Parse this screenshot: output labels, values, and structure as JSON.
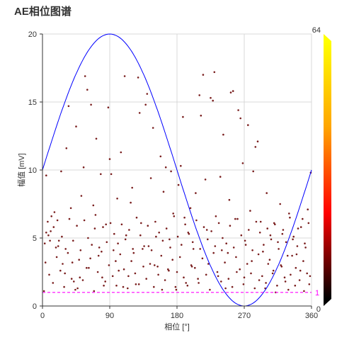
{
  "page": {
    "title": "AE相位图谱"
  },
  "chart_data": {
    "type": "scatter",
    "title": "AE相位图谱",
    "xlabel": "相位 [°]",
    "ylabel": "幅值 [mV]",
    "xlim": [
      0,
      360
    ],
    "ylim": [
      0,
      20
    ],
    "x_ticks": [
      "0",
      "90",
      "180",
      "270",
      "360"
    ],
    "y_ticks": [
      "0",
      "5",
      "10",
      "15",
      "20"
    ],
    "grid": true,
    "reference_sine": {
      "color": "#0000ff",
      "offset": 10,
      "amplitude": 10,
      "peak_phase": 90,
      "x_range": [
        0,
        360
      ]
    },
    "threshold": {
      "value": 1,
      "label": "1",
      "color": "#ff00ff",
      "style": "dashed"
    },
    "colorbar": {
      "max_label": "64",
      "min_label": "0",
      "colors": [
        "#000000",
        "#ff0000",
        "#ffa500",
        "#ffff00"
      ]
    },
    "point_color": "#7a1e1e",
    "points": [
      [
        2,
        1.1
      ],
      [
        5,
        9.6
      ],
      [
        5,
        5.4
      ],
      [
        7,
        6.2
      ],
      [
        8,
        5.2
      ],
      [
        10,
        4.8
      ],
      [
        12,
        6.6
      ],
      [
        15,
        5.8
      ],
      [
        18,
        4.3
      ],
      [
        20,
        6.3
      ],
      [
        22,
        4.8
      ],
      [
        25,
        9.9
      ],
      [
        27,
        3.1
      ],
      [
        30,
        2.4
      ],
      [
        32,
        11.6
      ],
      [
        35,
        14.7
      ],
      [
        38,
        7.2
      ],
      [
        40,
        3.2
      ],
      [
        42,
        1.8
      ],
      [
        45,
        13.2
      ],
      [
        47,
        1.3
      ],
      [
        50,
        2.1
      ],
      [
        52,
        8.1
      ],
      [
        55,
        10.2
      ],
      [
        57,
        16.9
      ],
      [
        60,
        15.9
      ],
      [
        62,
        2.8
      ],
      [
        65,
        14.8
      ],
      [
        68,
        7.4
      ],
      [
        70,
        5.7
      ],
      [
        72,
        12.3
      ],
      [
        75,
        3.7
      ],
      [
        78,
        9.7
      ],
      [
        80,
        2.1
      ],
      [
        82,
        1.5
      ],
      [
        85,
        6.0
      ],
      [
        88,
        14.6
      ],
      [
        90,
        10.8
      ],
      [
        92,
        9.7
      ],
      [
        95,
        4.1
      ],
      [
        98,
        3.3
      ],
      [
        100,
        7.9
      ],
      [
        102,
        2.6
      ],
      [
        105,
        11.3
      ],
      [
        108,
        1.4
      ],
      [
        110,
        16.9
      ],
      [
        112,
        5.2
      ],
      [
        115,
        2.2
      ],
      [
        118,
        7.6
      ],
      [
        120,
        8.7
      ],
      [
        122,
        3.9
      ],
      [
        125,
        1.6
      ],
      [
        128,
        16.8
      ],
      [
        130,
        14.2
      ],
      [
        132,
        6.1
      ],
      [
        135,
        2.9
      ],
      [
        138,
        14.8
      ],
      [
        140,
        15.6
      ],
      [
        142,
        4.4
      ],
      [
        145,
        9.4
      ],
      [
        148,
        13.1
      ],
      [
        150,
        3.0
      ],
      [
        152,
        5.1
      ],
      [
        155,
        2.3
      ],
      [
        158,
        11.0
      ],
      [
        160,
        1.2
      ],
      [
        162,
        8.4
      ],
      [
        165,
        10.2
      ],
      [
        168,
        2.7
      ],
      [
        170,
        4.9
      ],
      [
        172,
        9.9
      ],
      [
        175,
        6.8
      ],
      [
        178,
        1.4
      ],
      [
        180,
        2.5
      ],
      [
        182,
        8.9
      ],
      [
        185,
        10.3
      ],
      [
        188,
        13.9
      ],
      [
        190,
        6.5
      ],
      [
        192,
        1.7
      ],
      [
        195,
        5.4
      ],
      [
        198,
        7.2
      ],
      [
        200,
        2.9
      ],
      [
        202,
        4.2
      ],
      [
        205,
        8.3
      ],
      [
        208,
        2.0
      ],
      [
        210,
        15.5
      ],
      [
        212,
        14.0
      ],
      [
        215,
        17.0
      ],
      [
        218,
        9.3
      ],
      [
        220,
        5.6
      ],
      [
        222,
        3.1
      ],
      [
        225,
        15.3
      ],
      [
        228,
        15.1
      ],
      [
        230,
        17.2
      ],
      [
        232,
        6.6
      ],
      [
        235,
        2.2
      ],
      [
        238,
        9.5
      ],
      [
        240,
        4.1
      ],
      [
        242,
        12.6
      ],
      [
        245,
        1.3
      ],
      [
        248,
        3.9
      ],
      [
        250,
        7.8
      ],
      [
        252,
        15.7
      ],
      [
        255,
        15.8
      ],
      [
        258,
        6.4
      ],
      [
        260,
        2.5
      ],
      [
        262,
        14.4
      ],
      [
        265,
        13.8
      ],
      [
        268,
        10.5
      ],
      [
        270,
        2.1
      ],
      [
        272,
        4.5
      ],
      [
        275,
        13.3
      ],
      [
        278,
        7.0
      ],
      [
        280,
        3.3
      ],
      [
        282,
        9.9
      ],
      [
        285,
        11.7
      ],
      [
        288,
        12.1
      ],
      [
        290,
        1.9
      ],
      [
        292,
        6.2
      ],
      [
        295,
        4.0
      ],
      [
        298,
        1.3
      ],
      [
        300,
        8.3
      ],
      [
        302,
        3.1
      ],
      [
        305,
        5.2
      ],
      [
        308,
        2.4
      ],
      [
        310,
        6.1
      ],
      [
        312,
        1.0
      ],
      [
        315,
        4.7
      ],
      [
        318,
        7.5
      ],
      [
        320,
        2.9
      ],
      [
        322,
        5.6
      ],
      [
        325,
        1.8
      ],
      [
        328,
        3.7
      ],
      [
        330,
        6.8
      ],
      [
        332,
        2.3
      ],
      [
        335,
        4.9
      ],
      [
        338,
        1.5
      ],
      [
        340,
        3.8
      ],
      [
        342,
        5.7
      ],
      [
        345,
        2.6
      ],
      [
        348,
        6.4
      ],
      [
        350,
        1.1
      ],
      [
        352,
        4.3
      ],
      [
        355,
        7.1
      ],
      [
        358,
        2.2
      ],
      [
        359,
        9.8
      ],
      [
        4,
        3.2
      ],
      [
        9,
        2.3
      ],
      [
        14,
        1.7
      ],
      [
        19,
        3.6
      ],
      [
        24,
        2.6
      ],
      [
        29,
        1.4
      ],
      [
        34,
        3.9
      ],
      [
        39,
        2.0
      ],
      [
        44,
        1.2
      ],
      [
        49,
        3.4
      ],
      [
        54,
        1.9
      ],
      [
        59,
        2.8
      ],
      [
        64,
        3.5
      ],
      [
        69,
        1.1
      ],
      [
        74,
        2.5
      ],
      [
        79,
        4.0
      ],
      [
        84,
        1.8
      ],
      [
        89,
        3.0
      ],
      [
        94,
        2.2
      ],
      [
        99,
        1.5
      ],
      [
        104,
        3.8
      ],
      [
        109,
        2.7
      ],
      [
        114,
        1.3
      ],
      [
        119,
        3.3
      ],
      [
        124,
        2.4
      ],
      [
        129,
        1.6
      ],
      [
        134,
        4.2
      ],
      [
        139,
        2.0
      ],
      [
        144,
        3.1
      ],
      [
        149,
        1.4
      ],
      [
        154,
        2.9
      ],
      [
        159,
        3.7
      ],
      [
        164,
        1.9
      ],
      [
        169,
        2.6
      ],
      [
        174,
        3.4
      ],
      [
        179,
        1.2
      ],
      [
        184,
        3.6
      ],
      [
        189,
        2.1
      ],
      [
        194,
        1.5
      ],
      [
        199,
        3.0
      ],
      [
        204,
        2.8
      ],
      [
        209,
        1.7
      ],
      [
        214,
        3.5
      ],
      [
        219,
        2.3
      ],
      [
        224,
        1.2
      ],
      [
        229,
        3.9
      ],
      [
        234,
        2.5
      ],
      [
        239,
        1.8
      ],
      [
        244,
        3.2
      ],
      [
        249,
        2.0
      ],
      [
        254,
        1.4
      ],
      [
        259,
        3.6
      ],
      [
        264,
        2.7
      ],
      [
        269,
        1.6
      ],
      [
        274,
        3.1
      ],
      [
        279,
        2.4
      ],
      [
        284,
        1.3
      ],
      [
        289,
        3.8
      ],
      [
        294,
        2.2
      ],
      [
        299,
        1.7
      ],
      [
        304,
        3.4
      ],
      [
        309,
        2.6
      ],
      [
        314,
        1.5
      ],
      [
        319,
        3.0
      ],
      [
        324,
        2.1
      ],
      [
        329,
        1.2
      ],
      [
        334,
        3.7
      ],
      [
        339,
        2.8
      ],
      [
        344,
        1.9
      ],
      [
        349,
        3.3
      ],
      [
        354,
        2.4
      ],
      [
        357,
        1.6
      ],
      [
        3,
        4.6
      ],
      [
        11,
        5.5
      ],
      [
        16,
        6.9
      ],
      [
        21,
        4.4
      ],
      [
        26,
        5.1
      ],
      [
        31,
        4.2
      ],
      [
        36,
        6.4
      ],
      [
        41,
        4.8
      ],
      [
        46,
        5.9
      ],
      [
        51,
        4.1
      ],
      [
        56,
        6.3
      ],
      [
        61,
        5.0
      ],
      [
        66,
        4.5
      ],
      [
        71,
        6.7
      ],
      [
        76,
        4.3
      ],
      [
        81,
        5.8
      ],
      [
        86,
        4.7
      ],
      [
        91,
        6.1
      ],
      [
        96,
        5.3
      ],
      [
        101,
        4.6
      ],
      [
        106,
        6.0
      ],
      [
        111,
        4.9
      ],
      [
        116,
        5.6
      ],
      [
        121,
        4.2
      ],
      [
        126,
        6.5
      ],
      [
        131,
        5.2
      ],
      [
        136,
        4.4
      ],
      [
        141,
        5.9
      ],
      [
        146,
        4.1
      ],
      [
        151,
        6.2
      ],
      [
        156,
        5.4
      ],
      [
        161,
        4.8
      ],
      [
        166,
        5.7
      ],
      [
        171,
        4.3
      ],
      [
        176,
        6.6
      ],
      [
        181,
        5.1
      ],
      [
        186,
        4.5
      ],
      [
        191,
        6.0
      ],
      [
        196,
        5.3
      ],
      [
        201,
        4.7
      ],
      [
        206,
        6.3
      ],
      [
        211,
        4.2
      ],
      [
        216,
        5.8
      ],
      [
        221,
        4.9
      ],
      [
        226,
        5.5
      ],
      [
        231,
        4.4
      ],
      [
        236,
        6.1
      ],
      [
        241,
        5.0
      ],
      [
        246,
        4.6
      ],
      [
        251,
        5.9
      ],
      [
        256,
        4.3
      ],
      [
        261,
        6.4
      ],
      [
        266,
        5.2
      ],
      [
        271,
        4.8
      ],
      [
        276,
        5.6
      ],
      [
        281,
        4.1
      ],
      [
        286,
        6.2
      ],
      [
        291,
        5.4
      ],
      [
        296,
        4.5
      ],
      [
        301,
        5.7
      ],
      [
        306,
        4.9
      ],
      [
        311,
        6.0
      ],
      [
        316,
        4.2
      ],
      [
        321,
        5.3
      ],
      [
        326,
        4.7
      ],
      [
        331,
        6.5
      ],
      [
        336,
        5.1
      ],
      [
        341,
        4.4
      ],
      [
        346,
        5.8
      ],
      [
        351,
        4.6
      ],
      [
        356,
        6.1
      ]
    ]
  }
}
